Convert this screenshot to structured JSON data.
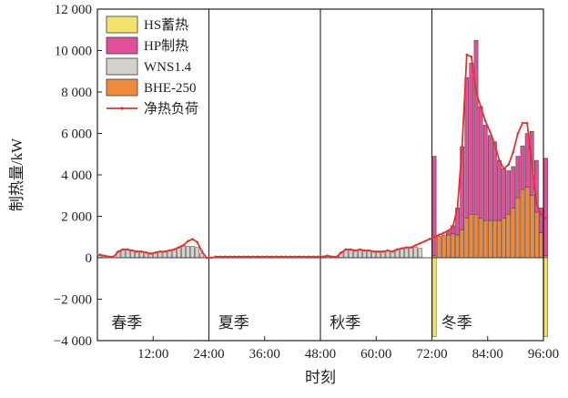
{
  "chart_data": {
    "type": "bar",
    "title": "",
    "xlabel": "时刻",
    "ylabel": "制热量/kW",
    "xlim": [
      0,
      96
    ],
    "ylim": [
      -4000,
      12000
    ],
    "x_ticks": [
      12,
      24,
      36,
      48,
      60,
      72,
      84,
      96
    ],
    "x_tick_labels": [
      "12:00",
      "24:00",
      "36:00",
      "48:00",
      "60:00",
      "72:00",
      "84:00",
      "96:00"
    ],
    "y_ticks": [
      -4000,
      -2000,
      0,
      2000,
      4000,
      6000,
      8000,
      10000,
      12000
    ],
    "y_tick_labels": [
      "−4 000",
      "−2 000",
      "0",
      "2 000",
      "4 000",
      "6 000",
      "8 000",
      "10 000",
      "12 000"
    ],
    "grid": false,
    "legend_position": "top-left",
    "season_dividers": [
      24,
      48,
      72
    ],
    "seasons": [
      {
        "label": "春季",
        "x": 3
      },
      {
        "label": "夏季",
        "x": 26
      },
      {
        "label": "秋季",
        "x": 50
      },
      {
        "label": "冬季",
        "x": 74
      }
    ],
    "series": [
      {
        "key": "hs",
        "name": "HS蓄热",
        "color": "#f2e36b",
        "values": [
          0,
          0,
          0,
          0,
          0,
          0,
          0,
          0,
          0,
          0,
          0,
          0,
          0,
          0,
          0,
          0,
          0,
          0,
          0,
          0,
          0,
          0,
          0,
          0,
          0,
          0,
          0,
          0,
          0,
          0,
          0,
          0,
          0,
          0,
          0,
          0,
          0,
          0,
          0,
          0,
          0,
          0,
          0,
          0,
          0,
          0,
          0,
          0,
          0,
          0,
          0,
          0,
          0,
          0,
          0,
          0,
          0,
          0,
          0,
          0,
          0,
          0,
          0,
          0,
          0,
          0,
          0,
          0,
          0,
          0,
          0,
          0,
          -3800,
          0,
          0,
          0,
          0,
          0,
          0,
          0,
          0,
          0,
          0,
          0,
          0,
          0,
          0,
          0,
          0,
          0,
          0,
          0,
          0,
          0,
          0,
          0,
          -3800
        ]
      },
      {
        "key": "hp",
        "name": "HP制热",
        "color": "#e0509a",
        "values": [
          0,
          0,
          0,
          0,
          0,
          0,
          0,
          0,
          0,
          0,
          0,
          0,
          0,
          0,
          0,
          0,
          0,
          0,
          0,
          0,
          0,
          0,
          0,
          0,
          0,
          0,
          0,
          0,
          0,
          0,
          0,
          0,
          0,
          0,
          0,
          0,
          0,
          0,
          0,
          0,
          0,
          0,
          0,
          0,
          0,
          0,
          0,
          0,
          0,
          0,
          0,
          0,
          0,
          0,
          0,
          0,
          0,
          0,
          0,
          0,
          0,
          0,
          0,
          0,
          0,
          0,
          0,
          0,
          0,
          0,
          0,
          0,
          4800,
          0,
          0,
          200,
          400,
          1300,
          4000,
          6800,
          7300,
          8400,
          5400,
          4600,
          4100,
          3800,
          2900,
          2400,
          2100,
          2000,
          2000,
          2100,
          2600,
          3100,
          2500,
          1200,
          4700
        ]
      },
      {
        "key": "wns",
        "name": "WNS1.4",
        "color": "#d4d1cd",
        "values": [
          100,
          100,
          0,
          0,
          300,
          400,
          400,
          350,
          300,
          300,
          250,
          200,
          250,
          300,
          300,
          350,
          400,
          500,
          600,
          550,
          550,
          500,
          200,
          0,
          0,
          50,
          50,
          50,
          50,
          50,
          50,
          50,
          50,
          50,
          50,
          50,
          50,
          50,
          50,
          50,
          50,
          50,
          50,
          50,
          50,
          50,
          50,
          50,
          50,
          100,
          50,
          50,
          250,
          400,
          400,
          350,
          400,
          350,
          350,
          300,
          300,
          300,
          350,
          300,
          400,
          450,
          500,
          500,
          500,
          450,
          0,
          0,
          0,
          0,
          0,
          0,
          0,
          0,
          0,
          0,
          0,
          0,
          0,
          0,
          0,
          0,
          0,
          0,
          0,
          0,
          0,
          0,
          0,
          0,
          0,
          0
        ]
      },
      {
        "key": "bhe",
        "name": "BHE-250",
        "color": "#ef8a3c",
        "values": [
          0,
          0,
          0,
          0,
          0,
          0,
          0,
          0,
          0,
          0,
          0,
          0,
          0,
          0,
          0,
          0,
          0,
          0,
          0,
          0,
          0,
          0,
          0,
          0,
          0,
          0,
          0,
          0,
          0,
          0,
          0,
          0,
          0,
          0,
          0,
          0,
          0,
          0,
          0,
          0,
          0,
          0,
          0,
          0,
          0,
          0,
          0,
          0,
          0,
          0,
          0,
          0,
          0,
          0,
          0,
          0,
          0,
          0,
          0,
          0,
          0,
          0,
          0,
          0,
          0,
          0,
          0,
          0,
          0,
          0,
          0,
          0,
          100,
          1050,
          1100,
          1100,
          1150,
          1100,
          1350,
          1900,
          2100,
          2100,
          1900,
          1800,
          1800,
          1800,
          1800,
          1900,
          2100,
          2400,
          2900,
          3300,
          3400,
          3000,
          2200,
          1200,
          100
        ]
      },
      {
        "key": "net",
        "name": "净热负荷",
        "color": "#e8322c",
        "values": [
          150,
          100,
          50,
          50,
          300,
          400,
          400,
          350,
          300,
          300,
          250,
          200,
          250,
          300,
          300,
          350,
          400,
          500,
          600,
          800,
          900,
          750,
          300,
          0,
          0,
          50,
          50,
          50,
          50,
          50,
          50,
          50,
          50,
          50,
          50,
          50,
          50,
          50,
          50,
          50,
          50,
          50,
          50,
          50,
          50,
          50,
          50,
          50,
          50,
          100,
          50,
          50,
          250,
          400,
          400,
          350,
          400,
          350,
          350,
          300,
          300,
          300,
          350,
          300,
          400,
          450,
          500,
          500,
          600,
          700,
          800,
          900,
          1000,
          1100,
          1200,
          1300,
          1500,
          2400,
          5400,
          9800,
          9700,
          8000,
          7300,
          6600,
          6100,
          5500,
          4700,
          4300,
          4500,
          5100,
          6000,
          6500,
          6500,
          4600,
          2600,
          2100,
          1900
        ]
      }
    ],
    "legend_order": [
      "hs",
      "hp",
      "wns",
      "bhe",
      "net"
    ]
  }
}
